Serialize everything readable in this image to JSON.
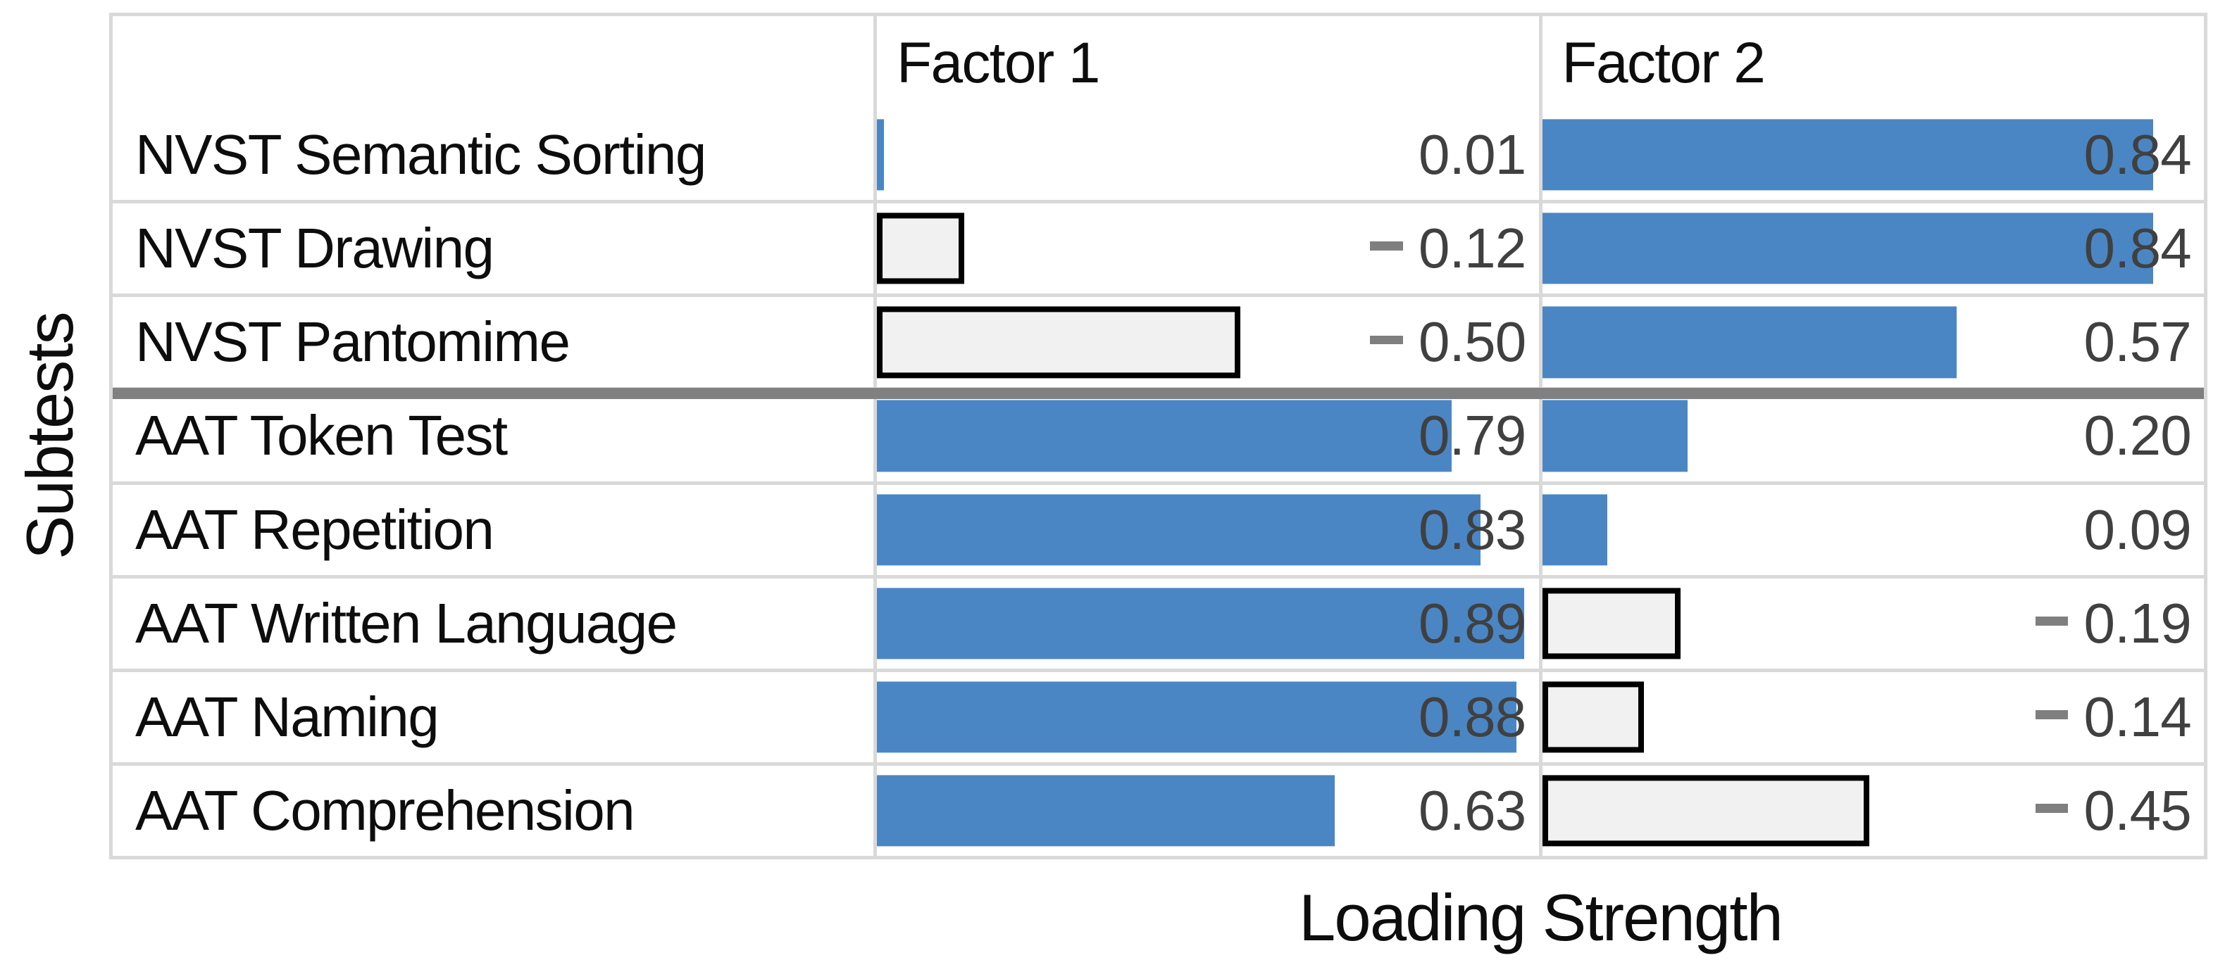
{
  "chart_data": {
    "type": "bar",
    "orientation": "horizontal",
    "title": "",
    "xlabel": "Loading Strength",
    "ylabel": "Subtests",
    "xlim": [
      0,
      0.91
    ],
    "grid": true,
    "value_label_format": "0.00",
    "group_separator_after_category": "NVST Pantomime",
    "categories": [
      "NVST Semantic Sorting",
      "NVST Drawing",
      "NVST Pantomime",
      "AAT Token Test",
      "AAT Repetition",
      "AAT Written Language",
      "AAT Naming",
      "AAT Comprehension"
    ],
    "series": [
      {
        "name": "Factor 1",
        "values": [
          0.01,
          -0.12,
          -0.5,
          0.79,
          0.83,
          0.89,
          0.88,
          0.63
        ]
      },
      {
        "name": "Factor 2",
        "values": [
          0.84,
          0.84,
          0.57,
          0.2,
          0.09,
          -0.19,
          -0.14,
          -0.45
        ]
      }
    ],
    "colors": {
      "positive_bar": "#4a86c4",
      "negative_bar_fill": "#f1f1f1",
      "negative_bar_border": "#000000",
      "grid_line": "#d9d9d9",
      "group_separator": "#808080",
      "value_text": "#404040",
      "label_text": "#0d0d0d",
      "minus_dash": "#7f7f7f"
    }
  }
}
